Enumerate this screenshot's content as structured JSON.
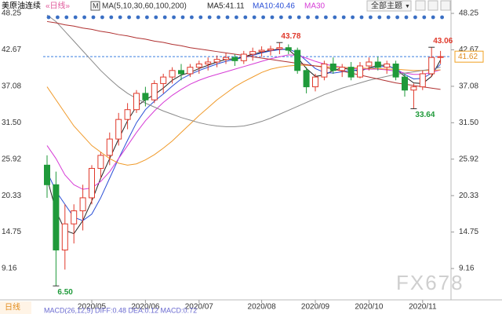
{
  "header": {
    "symbol": "美原油连续",
    "period": "«日线»",
    "ma_label": "MA(5,10,30,60,100,200)",
    "ma5": "MA5:41.11",
    "ma10": "MA10:40.46",
    "ma30": "MA30",
    "theme_button": "全部主题",
    "tab": "日线",
    "indicator": "MACD(26,12,9) DIFF:0.48 DEA:0.12 MACD:0.72",
    "watermark": "FX678"
  },
  "chart_data": {
    "type": "candlestick",
    "categories": [
      null,
      null,
      null,
      null,
      null,
      "2020/05",
      null,
      null,
      null,
      null,
      null,
      "2020/06",
      null,
      null,
      null,
      null,
      null,
      "2020/07",
      null,
      null,
      null,
      null,
      null,
      null,
      "2020/08",
      null,
      null,
      null,
      null,
      null,
      "2020/09",
      null,
      null,
      null,
      null,
      null,
      "2020/10",
      null,
      null,
      null,
      null,
      null,
      "2020/11",
      null,
      null
    ],
    "open": [
      25,
      22,
      12,
      16,
      18,
      20,
      24.5,
      26.5,
      29,
      32,
      33.5,
      36,
      35,
      37.5,
      38.5,
      39.5,
      39,
      40,
      40.5,
      40.8,
      41.2,
      41.5,
      41,
      42,
      42.4,
      42.6,
      42.8,
      43,
      42.6,
      39.5,
      37,
      38.5,
      40.5,
      39.5,
      40,
      38.5,
      40.2,
      40.8,
      40,
      40.5,
      38.5,
      36.5,
      37,
      39,
      41.5
    ],
    "high": [
      26.5,
      24,
      19,
      19,
      22,
      25,
      27,
      30,
      33,
      34.5,
      36.5,
      37,
      38,
      39,
      40,
      40.5,
      40.5,
      41,
      41.5,
      41.8,
      42.2,
      42,
      42.5,
      43,
      43.2,
      43.3,
      43.78,
      43.5,
      43,
      40,
      39,
      41,
      41.5,
      40.5,
      40.8,
      40.8,
      41.5,
      41.6,
      41,
      41,
      39,
      37.5,
      39.5,
      43.06,
      42.5
    ],
    "low": [
      20,
      6.5,
      9,
      13,
      15,
      19,
      23,
      25,
      28,
      30.5,
      33,
      34,
      34.5,
      36,
      37.5,
      38,
      38.5,
      39,
      39.5,
      40,
      40.5,
      40.2,
      40.5,
      41,
      41.6,
      41.8,
      42,
      42,
      39,
      36,
      36.3,
      38,
      39,
      38.5,
      38,
      38.3,
      39.5,
      39.5,
      39,
      38,
      35.5,
      33.64,
      36.5,
      38.5,
      40.5
    ],
    "close": [
      22,
      12,
      16,
      18,
      20,
      24.5,
      26.5,
      29,
      32,
      33.5,
      36,
      35,
      37.5,
      38.5,
      39.5,
      39,
      40,
      40.5,
      40.8,
      41.2,
      41.5,
      41,
      42,
      42.4,
      42.6,
      42.8,
      43,
      42.6,
      39.5,
      37,
      38.5,
      40.5,
      39.5,
      40,
      38.5,
      40.2,
      40.8,
      40,
      40.5,
      38.5,
      36.5,
      37,
      39,
      41.5,
      41.62
    ],
    "up_color": "#e0392b",
    "down_color": "#1f9a3a",
    "ma_lines": [
      {
        "color": "#222222",
        "values": [
          23,
          18,
          15,
          14.5,
          16.5,
          19.5,
          23,
          26,
          29,
          31.8,
          34,
          35,
          35.8,
          36.8,
          38,
          38.8,
          39.2,
          39.8,
          40.3,
          40.8,
          41.2,
          41.3,
          41.6,
          42,
          42.3,
          42.6,
          42.8,
          42.7,
          41.5,
          39.8,
          38.6,
          38.8,
          39.5,
          39.9,
          39.6,
          39.4,
          39.9,
          40.3,
          40.3,
          39.7,
          38.6,
          37.6,
          37.5,
          38.6,
          41.11
        ]
      },
      {
        "color": "#2a4fd6",
        "values": [
          24,
          21,
          19,
          17,
          16.5,
          17.5,
          20,
          23,
          26,
          28.8,
          31.5,
          33.5,
          34.8,
          35.9,
          37.1,
          38.2,
          38.9,
          39.5,
          40,
          40.5,
          40.9,
          41.2,
          41.5,
          41.8,
          42.2,
          42.5,
          42.7,
          42.8,
          42.2,
          41,
          39.8,
          39.2,
          39.1,
          39.3,
          39.5,
          39.6,
          39.8,
          40,
          40.2,
          39.8,
          38.9,
          38.2,
          38.3,
          39.1,
          40.46
        ]
      },
      {
        "color": "#d63cd6",
        "values": [
          28,
          26,
          23.5,
          22,
          21.3,
          21.5,
          22.5,
          24,
          26,
          28,
          30,
          31.8,
          33.3,
          34.6,
          35.7,
          36.6,
          37.4,
          38,
          38.5,
          38.9,
          39.3,
          39.7,
          40.1,
          40.5,
          40.9,
          41.3,
          41.6,
          41.9,
          41.8,
          41.4,
          40.9,
          40.5,
          40.2,
          40,
          39.8,
          39.7,
          39.7,
          39.7,
          39.6,
          39.4,
          39.1,
          38.9,
          38.9,
          39.2,
          39.6
        ]
      },
      {
        "color": "#f09a2a",
        "values": [
          37,
          35,
          33,
          31,
          29.5,
          28,
          27,
          26,
          25.3,
          25,
          25.2,
          25.8,
          26.6,
          27.6,
          28.7,
          30,
          31.3,
          32.6,
          33.8,
          35,
          36,
          37,
          37.8,
          38.5,
          39.2,
          39.7,
          40,
          40.2,
          40.3,
          40.3,
          40.2,
          40.1,
          40,
          40,
          39.9,
          39.9,
          39.8,
          39.8,
          39.7,
          39.7,
          39.6,
          39.5,
          39.5,
          39.5,
          39.6
        ]
      },
      {
        "color": "#8a8a8a",
        "values": [
          48,
          47,
          45.5,
          44,
          42.5,
          41,
          39.5,
          38.2,
          37,
          36,
          35.2,
          34.5,
          33.9,
          33.3,
          32.8,
          32.3,
          31.9,
          31.5,
          31.2,
          31,
          30.9,
          30.9,
          31,
          31.3,
          31.7,
          32.2,
          32.8,
          33.4,
          34,
          34.6,
          35.2,
          35.8,
          36.3,
          36.8,
          37.2,
          37.6,
          38,
          38.3,
          38.6,
          38.9,
          39.1,
          39.3,
          39.5,
          39.7,
          40
        ]
      },
      {
        "color": "#b03030",
        "values": [
          47,
          46.8,
          46.5,
          46.3,
          46,
          45.8,
          45.5,
          45.3,
          45,
          44.8,
          44.5,
          44.3,
          44,
          43.8,
          43.5,
          43.3,
          43,
          42.8,
          42.6,
          42.4,
          42.2,
          42,
          41.8,
          41.6,
          41.4,
          41.2,
          41,
          40.8,
          40.6,
          40.4,
          40.2,
          40,
          39.7,
          39.4,
          39.1,
          38.8,
          38.5,
          38.2,
          37.9,
          37.6,
          37.4,
          37.2,
          37,
          36.8,
          36.6
        ]
      }
    ],
    "annotations": [
      {
        "label": "6.50",
        "value": 6.5,
        "color": "#1f9a3a"
      },
      {
        "label": "43.78",
        "value": 43.78,
        "color": "#e0392b"
      },
      {
        "label": "33.64",
        "value": 33.64,
        "color": "#1f9a3a"
      },
      {
        "label": "43.06",
        "value": 43.06,
        "color": "#e0392b"
      }
    ],
    "last_price": {
      "value": 41.62,
      "label": "41.62"
    },
    "ylim": [
      4.6,
      50.3
    ],
    "yticks": [
      {
        "value": 48.25,
        "label": "48.25"
      },
      {
        "value": 42.67,
        "label": "42.67"
      },
      {
        "value": 37.08,
        "label": "37.08"
      },
      {
        "value": 31.5,
        "label": "31.50"
      },
      {
        "value": 25.92,
        "label": "25.92"
      },
      {
        "value": 20.33,
        "label": "20.33"
      },
      {
        "value": 14.75,
        "label": "14.75"
      },
      {
        "value": 9.16,
        "label": "9.16"
      }
    ]
  }
}
